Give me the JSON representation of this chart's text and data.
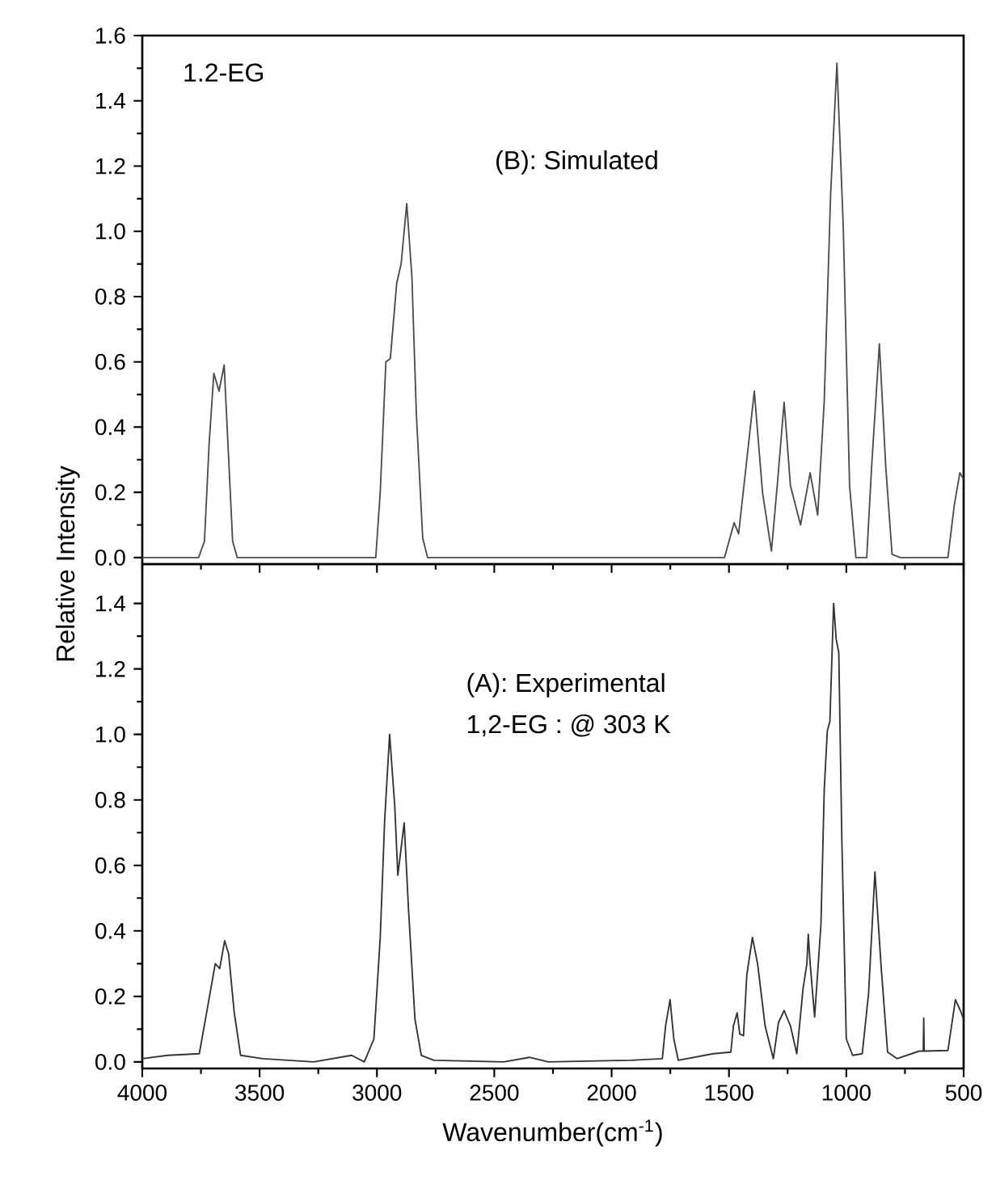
{
  "chart_data": [
    {
      "type": "line",
      "xlim": [
        4000,
        500
      ],
      "ylim": [
        -0.02,
        1.6
      ],
      "tick_labels": "y",
      "xticks": [
        {
          "value": 4000,
          "label": null
        },
        {
          "value": 3500,
          "label": null
        },
        {
          "value": 3000,
          "label": null
        },
        {
          "value": 2500,
          "label": null
        },
        {
          "value": 2000,
          "label": null
        },
        {
          "value": 1500,
          "label": null
        },
        {
          "value": 1000,
          "label": null
        },
        {
          "value": 500,
          "label": null
        }
      ],
      "yticks": [
        {
          "value": 0,
          "label": "0.0"
        },
        {
          "value": 0.2,
          "label": "0.2"
        },
        {
          "value": 0.4,
          "label": "0.4"
        },
        {
          "value": 0.6,
          "label": "0.6"
        },
        {
          "value": 0.8,
          "label": "0.8"
        },
        {
          "value": 1.0,
          "label": "1.0"
        },
        {
          "value": 1.2,
          "label": "1.2"
        },
        {
          "value": 1.4,
          "label": "1.4"
        },
        {
          "value": 1.6,
          "label": "1.6"
        }
      ],
      "annotations": [
        "1.2-EG",
        "(B): Simulated"
      ],
      "series": [
        {
          "color": "#4d4d4d",
          "x": [
            4000,
            3760,
            3735,
            3715,
            3695,
            3673,
            3651,
            3635,
            3615,
            3595,
            3005,
            2986,
            2962,
            2943,
            2916,
            2897,
            2873,
            2851,
            2832,
            2805,
            2784,
            1519,
            1478,
            1459,
            1427,
            1392,
            1357,
            1319,
            1292,
            1265,
            1238,
            1195,
            1154,
            1122,
            1094,
            1067,
            1040,
            1013,
            986,
            959,
            913,
            892,
            859,
            832,
            805,
            770,
            567,
            540,
            516,
            500
          ],
          "values": [
            0,
            0,
            0.05,
            0.35,
            0.565,
            0.51,
            0.59,
            0.35,
            0.05,
            0,
            0,
            0.2,
            0.6,
            0.61,
            0.84,
            0.9,
            1.085,
            0.86,
            0.44,
            0.06,
            0,
            0,
            0.107,
            0.073,
            0.28,
            0.51,
            0.2,
            0.02,
            0.24,
            0.476,
            0.22,
            0.1,
            0.26,
            0.13,
            0.48,
            1.11,
            1.515,
            1.015,
            0.22,
            0,
            0,
            0.28,
            0.655,
            0.28,
            0.01,
            0,
            0,
            0.16,
            0.26,
            0.24
          ]
        }
      ]
    },
    {
      "type": "line",
      "xlim": [
        4000,
        500
      ],
      "ylim": [
        -0.02,
        1.52
      ],
      "xlabel": "Wavenumber(cm$^{-1}$)",
      "ylabel": "Relative Intensity",
      "xticks": [
        4000,
        3500,
        3000,
        2500,
        2000,
        1500,
        1000,
        500
      ],
      "yticks": [
        {
          "value": 0,
          "label": "0.0"
        },
        {
          "value": 0.2,
          "label": "0.2"
        },
        {
          "value": 0.4,
          "label": "0.4"
        },
        {
          "value": 0.6,
          "label": "0.6"
        },
        {
          "value": 0.8,
          "label": "0.8"
        },
        {
          "value": 1.0,
          "label": "1.0"
        },
        {
          "value": 1.2,
          "label": "1.2"
        },
        {
          "value": 1.4,
          "label": "1.4"
        }
      ],
      "annotations": [
        "(A): Experimental",
        "1,2-EG : @ 303 K"
      ],
      "series": [
        {
          "color": "#333333",
          "x": [
            4000,
            3892,
            3757,
            3716,
            3689,
            3670,
            3649,
            3632,
            3608,
            3581,
            3486,
            3270,
            3108,
            3054,
            3013,
            2986,
            2967,
            2946,
            2924,
            2911,
            2884,
            2865,
            2838,
            2811,
            2757,
            2459,
            2351,
            2270,
            1919,
            1784,
            1770,
            1751,
            1735,
            1716,
            1567,
            1492,
            1481,
            1465,
            1454,
            1438,
            1424,
            1400,
            1378,
            1346,
            1311,
            1289,
            1265,
            1238,
            1211,
            1184,
            1168,
            1162,
            1154,
            1135,
            1108,
            1094,
            1081,
            1070,
            1054,
            1043,
            1032,
            1019,
            1000,
            973,
            932,
            905,
            878,
            851,
            824,
            784,
            689,
            672,
            670,
            668,
            567,
            535,
            514,
            500
          ],
          "values": [
            0.01,
            0.02,
            0.025,
            0.19,
            0.3,
            0.285,
            0.37,
            0.33,
            0.15,
            0.02,
            0.01,
            0,
            0.02,
            0,
            0.07,
            0.38,
            0.74,
            1.0,
            0.78,
            0.57,
            0.73,
            0.46,
            0.13,
            0.02,
            0.005,
            0,
            0.014,
            0,
            0.005,
            0.01,
            0.11,
            0.19,
            0.07,
            0.005,
            0.025,
            0.03,
            0.11,
            0.15,
            0.085,
            0.08,
            0.265,
            0.38,
            0.3,
            0.11,
            0.01,
            0.12,
            0.157,
            0.11,
            0.025,
            0.225,
            0.3,
            0.39,
            0.3,
            0.137,
            0.42,
            0.83,
            1.01,
            1.04,
            1.4,
            1.29,
            1.25,
            0.68,
            0.07,
            0.02,
            0.025,
            0.21,
            0.58,
            0.285,
            0.03,
            0.01,
            0.033,
            0.033,
            0.134,
            0.033,
            0.035,
            0.19,
            0.157,
            0.13
          ]
        }
      ]
    }
  ]
}
